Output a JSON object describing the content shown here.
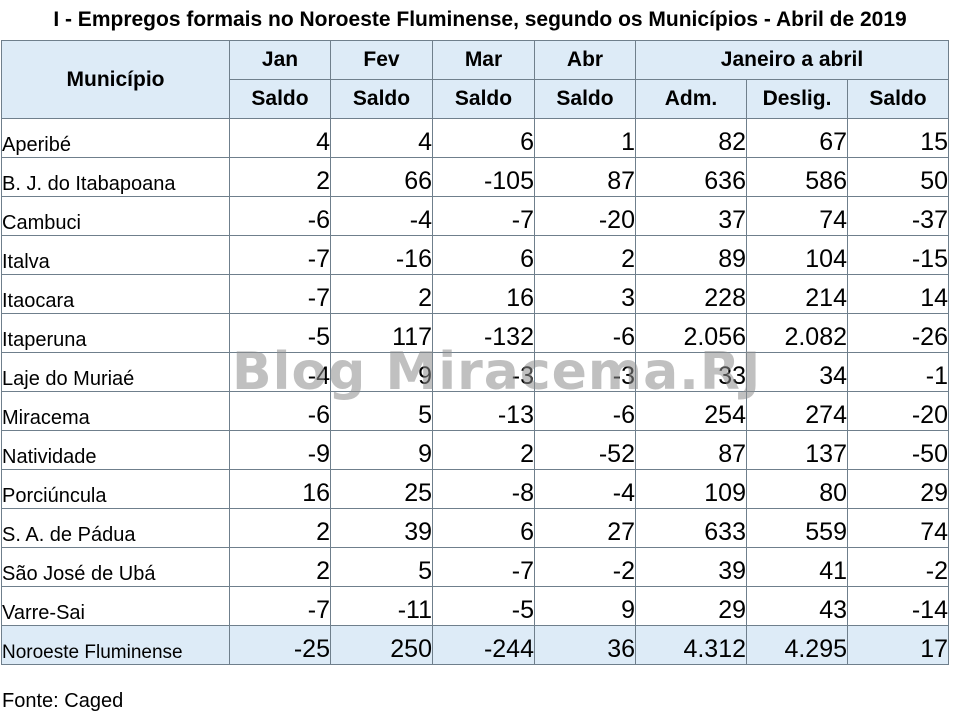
{
  "title": "I - Empregos formais no Noroeste Fluminense, segundo os Municípios - Abril de 2019",
  "header": {
    "municipio": "Município",
    "months": [
      "Jan",
      "Fev",
      "Mar",
      "Abr"
    ],
    "period": "Janeiro a abril",
    "sub": [
      "Saldo",
      "Saldo",
      "Saldo",
      "Saldo",
      "Adm.",
      "Deslig.",
      "Saldo"
    ]
  },
  "rows": [
    {
      "name": "Aperibé",
      "v": [
        "4",
        "4",
        "6",
        "1",
        "82",
        "67",
        "15"
      ]
    },
    {
      "name": "B. J. do Itabapoana",
      "v": [
        "2",
        "66",
        "-105",
        "87",
        "636",
        "586",
        "50"
      ]
    },
    {
      "name": "Cambuci",
      "v": [
        "-6",
        "-4",
        "-7",
        "-20",
        "37",
        "74",
        "-37"
      ]
    },
    {
      "name": "Italva",
      "v": [
        "-7",
        "-16",
        "6",
        "2",
        "89",
        "104",
        "-15"
      ]
    },
    {
      "name": "Itaocara",
      "v": [
        "-7",
        "2",
        "16",
        "3",
        "228",
        "214",
        "14"
      ]
    },
    {
      "name": "Itaperuna",
      "v": [
        "-5",
        "117",
        "-132",
        "-6",
        "2.056",
        "2.082",
        "-26"
      ]
    },
    {
      "name": "Laje do Muriaé",
      "v": [
        "-4",
        "9",
        "-3",
        "-3",
        "33",
        "34",
        "-1"
      ]
    },
    {
      "name": "Miracema",
      "v": [
        "-6",
        "5",
        "-13",
        "-6",
        "254",
        "274",
        "-20"
      ]
    },
    {
      "name": "Natividade",
      "v": [
        "-9",
        "9",
        "2",
        "-52",
        "87",
        "137",
        "-50"
      ]
    },
    {
      "name": "Porciúncula",
      "v": [
        "16",
        "25",
        "-8",
        "-4",
        "109",
        "80",
        "29"
      ]
    },
    {
      "name": "S. A. de Pádua",
      "v": [
        "2",
        "39",
        "6",
        "27",
        "633",
        "559",
        "74"
      ]
    },
    {
      "name": "São José de Ubá",
      "v": [
        "2",
        "5",
        "-7",
        "-2",
        "39",
        "41",
        "-2"
      ]
    },
    {
      "name": "Varre-Sai",
      "v": [
        "-7",
        "-11",
        "-5",
        "9",
        "29",
        "43",
        "-14"
      ]
    }
  ],
  "total": {
    "name": "Noroeste Fluminense",
    "v": [
      "-25",
      "250",
      "-244",
      "36",
      "4.312",
      "4.295",
      "17"
    ]
  },
  "source": "Fonte: Caged",
  "watermark": "Blog Miracema.RJ"
}
